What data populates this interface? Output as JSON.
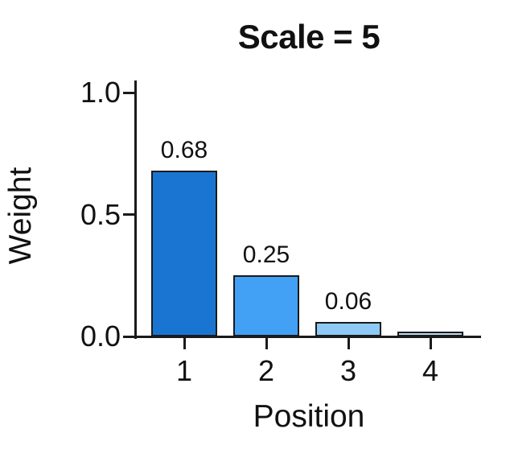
{
  "chart_data": {
    "type": "bar",
    "title": "Scale = 5",
    "xlabel": "Position",
    "ylabel": "Weight",
    "categories": [
      "1",
      "2",
      "3",
      "4"
    ],
    "values": [
      0.68,
      0.25,
      0.06,
      0.02
    ],
    "bar_labels": [
      "0.68",
      "0.25",
      "0.06",
      ""
    ],
    "bar_colors": [
      "#1a75d2",
      "#42a0f5",
      "#8ec9f5",
      "#b8d9f2"
    ],
    "bar_edge_color": "#1a1a1a",
    "yticks": [
      {
        "value": 0.0,
        "label": "0.0"
      },
      {
        "value": 0.5,
        "label": "0.5"
      },
      {
        "value": 1.0,
        "label": "1.0"
      }
    ],
    "ylim": [
      0,
      1.05
    ],
    "xlim_categories": 4,
    "grid": false,
    "legend_position": "none",
    "text_color": "#111111",
    "background_color": "#ffffff"
  }
}
